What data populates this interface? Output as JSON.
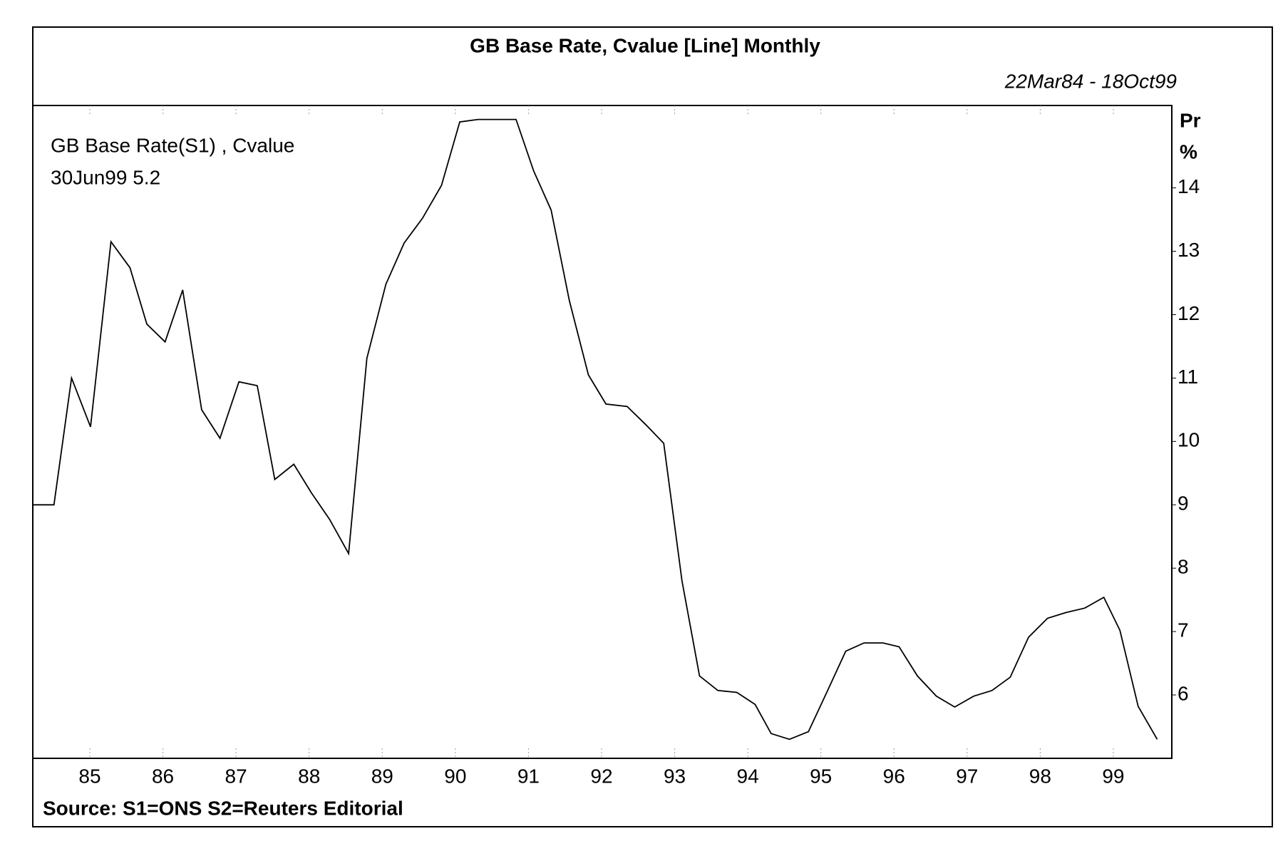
{
  "chart_data": {
    "type": "line",
    "title": "GB Base Rate, Cvalue [Line] Monthly",
    "subtitle": "22Mar84 - 18Oct99",
    "annotations": [
      "GB Base Rate(S1) , Cvalue",
      "30Jun99 5.2"
    ],
    "y_axis_label": "Pr",
    "y_axis_unit": "%",
    "source": "Source: S1=ONS S2=Reuters Editorial",
    "x": [
      84.22,
      84.51,
      84.75,
      85.01,
      85.29,
      85.55,
      85.78,
      86.03,
      86.27,
      86.53,
      86.78,
      87.04,
      87.29,
      87.53,
      87.79,
      88.03,
      88.28,
      88.54,
      88.79,
      89.05,
      89.3,
      89.55,
      89.81,
      90.06,
      90.31,
      90.83,
      91.07,
      91.31,
      91.56,
      91.82,
      92.06,
      92.35,
      92.6,
      92.85,
      93.1,
      93.34,
      93.59,
      93.85,
      94.1,
      94.32,
      94.57,
      94.83,
      95.08,
      95.34,
      95.59,
      95.85,
      96.07,
      96.32,
      96.58,
      96.83,
      97.09,
      97.34,
      97.59,
      97.84,
      98.1,
      98.35,
      98.61,
      98.87,
      99.09,
      99.34,
      99.6
    ],
    "series": [
      {
        "name": "GB Base Rate(S1)",
        "color": "#000000",
        "values": [
          9.0,
          9.0,
          11.0,
          10.23,
          13.15,
          12.74,
          11.85,
          11.57,
          12.39,
          10.5,
          10.05,
          10.94,
          10.88,
          9.4,
          9.64,
          9.19,
          8.77,
          8.23,
          11.31,
          12.48,
          13.13,
          13.52,
          14.04,
          15.04,
          15.08,
          15.08,
          14.27,
          13.65,
          12.22,
          11.05,
          10.59,
          10.55,
          10.27,
          9.97,
          7.8,
          6.3,
          6.07,
          6.04,
          5.85,
          5.39,
          5.3,
          5.42,
          6.04,
          6.69,
          6.82,
          6.82,
          6.76,
          6.3,
          5.98,
          5.81,
          5.98,
          6.07,
          6.28,
          6.91,
          7.21,
          7.3,
          7.37,
          7.54,
          7.02,
          5.82,
          5.3
        ]
      }
    ],
    "xlim": [
      84.22,
      99.8
    ],
    "xticks": [
      85,
      86,
      87,
      88,
      89,
      90,
      91,
      92,
      93,
      94,
      95,
      96,
      97,
      98,
      99
    ],
    "ylim": [
      5.0,
      15.3
    ],
    "yticks": [
      6,
      7,
      8,
      9,
      10,
      11,
      12,
      13,
      14
    ]
  }
}
